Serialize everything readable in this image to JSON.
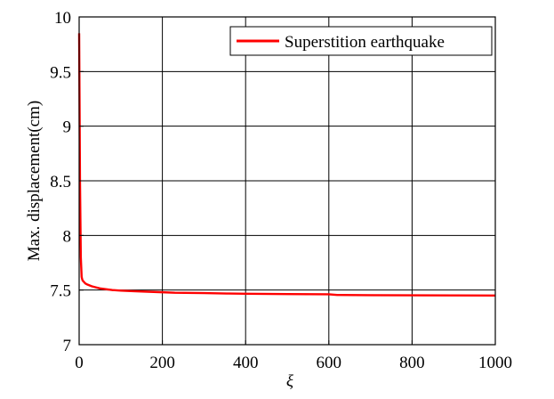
{
  "chart_data": {
    "type": "line",
    "title": "",
    "xlabel": "ξ",
    "ylabel": "Max. displacement(cm)",
    "xlim": [
      0,
      1000
    ],
    "ylim": [
      7,
      10
    ],
    "xticks": [
      0,
      200,
      400,
      600,
      800,
      1000
    ],
    "yticks": [
      7,
      7.5,
      8,
      8.5,
      9,
      9.5,
      10
    ],
    "xtick_labels": [
      "0",
      "200",
      "400",
      "600",
      "800",
      "1000"
    ],
    "ytick_labels": [
      "7",
      "7.5",
      "8",
      "8.5",
      "9",
      "9.5",
      "10"
    ],
    "grid": true,
    "legend_position": "top-right",
    "series": [
      {
        "name": "Superstition earthquake",
        "color": "#ff0000",
        "x": [
          0,
          1,
          2,
          4,
          6,
          8,
          10,
          15,
          20,
          30,
          40,
          50,
          60,
          80,
          100,
          130,
          150,
          200,
          230,
          300,
          360,
          400,
          500,
          600,
          620,
          700,
          800,
          900,
          1000
        ],
        "y": [
          9.85,
          9.2,
          8.5,
          7.8,
          7.62,
          7.59,
          7.58,
          7.56,
          7.55,
          7.535,
          7.525,
          7.515,
          7.51,
          7.5,
          7.495,
          7.49,
          7.487,
          7.48,
          7.475,
          7.472,
          7.468,
          7.466,
          7.463,
          7.461,
          7.455,
          7.453,
          7.452,
          7.451,
          7.45
        ]
      }
    ]
  }
}
